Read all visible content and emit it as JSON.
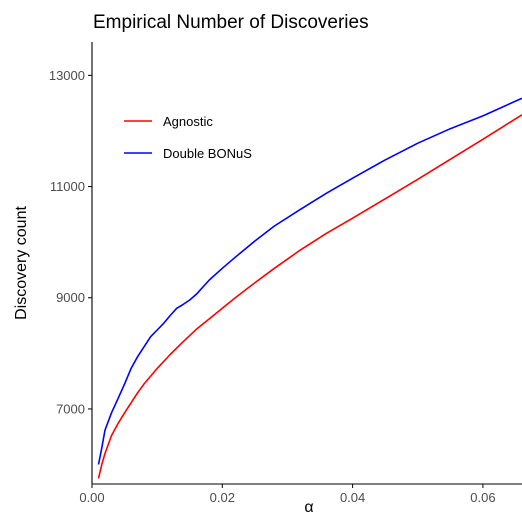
{
  "colors": {
    "agnostic": "#ff0000",
    "double_bonus": "#0000ff",
    "axis": "#000000",
    "tick_label": "#4d4d4d"
  },
  "chart_data": {
    "type": "line",
    "title": "Empirical Number of Discoveries",
    "xlabel": "α",
    "ylabel": "Discovery count",
    "xlim": [
      0,
      0.066
    ],
    "ylim": [
      5650,
      13600
    ],
    "x_ticks": [
      0.0,
      0.02,
      0.04,
      0.06
    ],
    "x_tick_labels": [
      "0.00",
      "0.02",
      "0.04",
      "0.06"
    ],
    "y_ticks": [
      7000,
      9000,
      11000,
      13000
    ],
    "y_tick_labels": [
      "7000",
      "9000",
      "11000",
      "13000"
    ],
    "grid": false,
    "legend_position": "top-left",
    "series": [
      {
        "name": "Agnostic",
        "color": "#ff0000",
        "x": [
          0.001,
          0.0015,
          0.002,
          0.003,
          0.004,
          0.005,
          0.006,
          0.007,
          0.008,
          0.01,
          0.012,
          0.014,
          0.016,
          0.018,
          0.02,
          0.022,
          0.025,
          0.028,
          0.032,
          0.036,
          0.04,
          0.045,
          0.05,
          0.055,
          0.06,
          0.066
        ],
        "y": [
          5750,
          6000,
          6200,
          6520,
          6740,
          6930,
          7110,
          7290,
          7450,
          7730,
          7980,
          8210,
          8430,
          8620,
          8810,
          9000,
          9270,
          9530,
          9860,
          10160,
          10430,
          10780,
          11130,
          11490,
          11850,
          12290
        ]
      },
      {
        "name": "Double BONuS",
        "color": "#0000ff",
        "x": [
          0.001,
          0.0015,
          0.002,
          0.003,
          0.004,
          0.005,
          0.006,
          0.007,
          0.008,
          0.009,
          0.01,
          0.011,
          0.012,
          0.013,
          0.014,
          0.015,
          0.016,
          0.018,
          0.02,
          0.022,
          0.025,
          0.028,
          0.032,
          0.036,
          0.04,
          0.045,
          0.05,
          0.055,
          0.06,
          0.066
        ],
        "y": [
          6000,
          6300,
          6620,
          6930,
          7190,
          7450,
          7730,
          7940,
          8120,
          8300,
          8420,
          8540,
          8680,
          8810,
          8880,
          8960,
          9060,
          9320,
          9530,
          9730,
          10020,
          10290,
          10590,
          10880,
          11150,
          11480,
          11780,
          12040,
          12270,
          12590
        ]
      }
    ]
  }
}
